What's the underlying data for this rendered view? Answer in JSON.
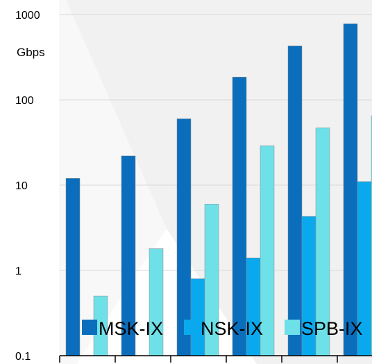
{
  "chart_data": {
    "type": "bar",
    "scale": "log",
    "ylabel": "Gbps",
    "ylim": [
      0.1,
      1000
    ],
    "yticks": [
      "0.1",
      "1",
      "10",
      "100",
      "1000"
    ],
    "categories": [
      "",
      "",
      "",
      "",
      "",
      ""
    ],
    "series": [
      {
        "name": "MSK-IX",
        "values": [
          12,
          22,
          60,
          185,
          430,
          780
        ]
      },
      {
        "name": "NSK-IX",
        "values": [
          null,
          null,
          0.8,
          1.4,
          4.3,
          11
        ]
      },
      {
        "name": "SPB-IX",
        "values": [
          0.5,
          1.8,
          6,
          29,
          47,
          65
        ]
      }
    ],
    "colors": {
      "MSK-IX": "#0a6ebd",
      "NSK-IX": "#0aa9ee",
      "SPB-IX": "#6ee0e8"
    },
    "grid": true,
    "legend": "bottom"
  }
}
